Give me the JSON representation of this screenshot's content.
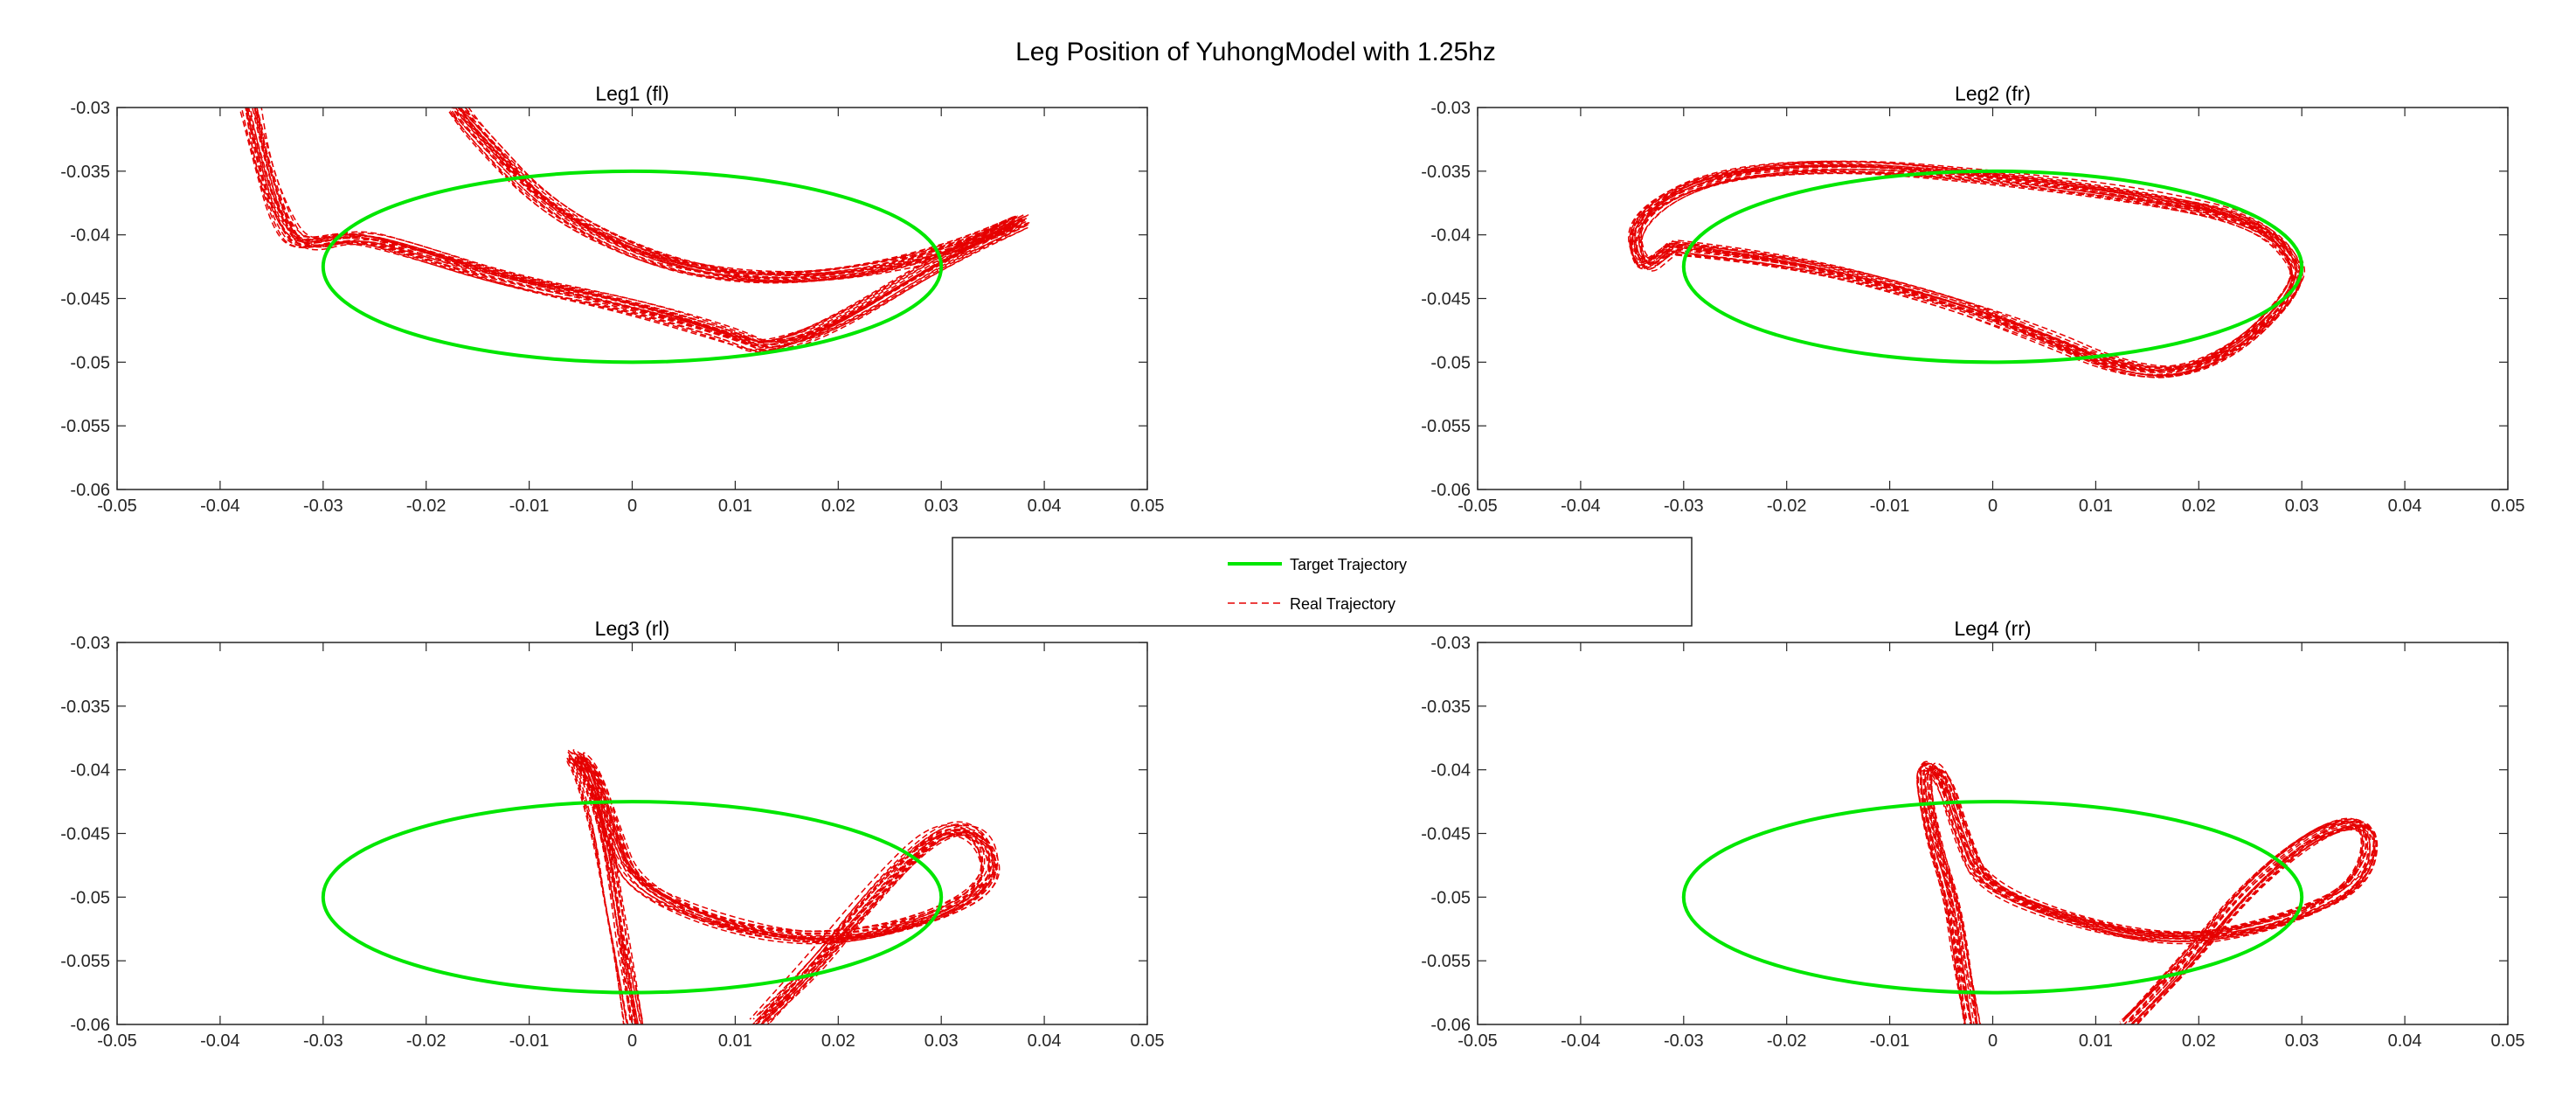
{
  "figure": {
    "title": "Leg Position of YuhongModel with 1.25hz"
  },
  "legend": {
    "entries": [
      {
        "label": "Target Trajectory",
        "color": "#00e600",
        "style": "solid"
      },
      {
        "label": "Real Trajectory",
        "color": "#e60000",
        "style": "dashed"
      }
    ]
  },
  "colors": {
    "target": "#00e600",
    "real": "#e60000",
    "axis": "#262626"
  },
  "chart_data": [
    {
      "type": "line",
      "title": "Leg1 (fl)",
      "xlim": [
        -0.05,
        0.05
      ],
      "ylim": [
        -0.06,
        -0.03
      ],
      "xticks": [
        "-0.05",
        "-0.04",
        "-0.03",
        "-0.02",
        "-0.01",
        "0",
        "0.01",
        "0.02",
        "0.03",
        "0.04",
        "0.05"
      ],
      "yticks": [
        "-0.03",
        "-0.035",
        "-0.04",
        "-0.045",
        "-0.05",
        "-0.055",
        "-0.06"
      ],
      "target": {
        "center": [
          0,
          -0.0425
        ],
        "rx": 0.03,
        "ry": 0.0075
      },
      "real_path": [
        [
          -0.037,
          -0.03
        ],
        [
          -0.036,
          -0.034
        ],
        [
          -0.034,
          -0.039
        ],
        [
          -0.032,
          -0.041
        ],
        [
          -0.027,
          -0.04
        ],
        [
          -0.022,
          -0.041
        ],
        [
          -0.012,
          -0.0435
        ],
        [
          0.0,
          -0.0455
        ],
        [
          0.01,
          -0.048
        ],
        [
          0.013,
          -0.049
        ],
        [
          0.02,
          -0.047
        ],
        [
          0.03,
          -0.042
        ],
        [
          0.04,
          -0.038
        ],
        [
          0.032,
          -0.041
        ],
        [
          0.022,
          -0.043
        ],
        [
          0.012,
          -0.0435
        ],
        [
          0.002,
          -0.042
        ],
        [
          -0.008,
          -0.038
        ],
        [
          -0.015,
          -0.032
        ],
        [
          -0.017,
          -0.03
        ]
      ],
      "real_copies": 22,
      "real_spread": 0.0009
    },
    {
      "type": "line",
      "title": "Leg2 (fr)",
      "xlim": [
        -0.05,
        0.05
      ],
      "ylim": [
        -0.06,
        -0.03
      ],
      "xticks": [
        "-0.05",
        "-0.04",
        "-0.03",
        "-0.02",
        "-0.01",
        "0",
        "0.01",
        "0.02",
        "0.03",
        "0.04",
        "0.05"
      ],
      "yticks": [
        "-0.03",
        "-0.035",
        "-0.04",
        "-0.045",
        "-0.05",
        "-0.055",
        "-0.06"
      ],
      "target": {
        "center": [
          0,
          -0.0425
        ],
        "rx": 0.03,
        "ry": 0.0075
      },
      "real_path": [
        [
          -0.031,
          -0.041
        ],
        [
          -0.02,
          -0.042
        ],
        [
          -0.005,
          -0.045
        ],
        [
          0.005,
          -0.048
        ],
        [
          0.012,
          -0.0505
        ],
        [
          0.018,
          -0.051
        ],
        [
          0.024,
          -0.049
        ],
        [
          0.029,
          -0.045
        ],
        [
          0.03,
          -0.0425
        ],
        [
          0.026,
          -0.039
        ],
        [
          0.015,
          -0.037
        ],
        [
          0.0,
          -0.0355
        ],
        [
          -0.015,
          -0.0345
        ],
        [
          -0.028,
          -0.0355
        ],
        [
          -0.035,
          -0.039
        ],
        [
          -0.034,
          -0.043
        ],
        [
          -0.031,
          -0.041
        ]
      ],
      "real_copies": 22,
      "real_spread": 0.0008
    },
    {
      "type": "line",
      "title": "Leg3 (rl)",
      "xlim": [
        -0.05,
        0.05
      ],
      "ylim": [
        -0.06,
        -0.03
      ],
      "xticks": [
        "-0.05",
        "-0.04",
        "-0.03",
        "-0.02",
        "-0.01",
        "0",
        "0.01",
        "0.02",
        "0.03",
        "0.04",
        "0.05"
      ],
      "yticks": [
        "-0.03",
        "-0.035",
        "-0.04",
        "-0.045",
        "-0.05",
        "-0.055",
        "-0.06"
      ],
      "target": {
        "center": [
          0,
          -0.05
        ],
        "rx": 0.03,
        "ry": 0.0075
      },
      "real_path": [
        [
          0.0,
          -0.06
        ],
        [
          -0.001,
          -0.055
        ],
        [
          -0.002,
          -0.05
        ],
        [
          -0.003,
          -0.045
        ],
        [
          -0.005,
          -0.04
        ],
        [
          -0.006,
          -0.0385
        ],
        [
          -0.004,
          -0.04
        ],
        [
          -0.002,
          -0.045
        ],
        [
          0.0,
          -0.049
        ],
        [
          0.008,
          -0.052
        ],
        [
          0.018,
          -0.0535
        ],
        [
          0.028,
          -0.052
        ],
        [
          0.035,
          -0.049
        ],
        [
          0.034,
          -0.045
        ],
        [
          0.03,
          -0.0445
        ],
        [
          0.024,
          -0.049
        ],
        [
          0.018,
          -0.055
        ],
        [
          0.012,
          -0.06
        ]
      ],
      "real_copies": 22,
      "real_spread": 0.0009
    },
    {
      "type": "line",
      "title": "Leg4 (rr)",
      "xlim": [
        -0.05,
        0.05
      ],
      "ylim": [
        -0.06,
        -0.03
      ],
      "xticks": [
        "-0.05",
        "-0.04",
        "-0.03",
        "-0.02",
        "-0.01",
        "0",
        "0.01",
        "0.02",
        "0.03",
        "0.04",
        "0.05"
      ],
      "yticks": [
        "-0.03",
        "-0.035",
        "-0.04",
        "-0.045",
        "-0.05",
        "-0.055",
        "-0.06"
      ],
      "target": {
        "center": [
          0,
          -0.05
        ],
        "rx": 0.03,
        "ry": 0.0075
      },
      "real_path": [
        [
          -0.002,
          -0.06
        ],
        [
          -0.003,
          -0.055
        ],
        [
          -0.004,
          -0.05
        ],
        [
          -0.006,
          -0.045
        ],
        [
          -0.007,
          -0.0395
        ],
        [
          -0.005,
          -0.04
        ],
        [
          -0.003,
          -0.045
        ],
        [
          -0.001,
          -0.049
        ],
        [
          0.008,
          -0.052
        ],
        [
          0.018,
          -0.0535
        ],
        [
          0.028,
          -0.052
        ],
        [
          0.036,
          -0.049
        ],
        [
          0.037,
          -0.044
        ],
        [
          0.032,
          -0.0445
        ],
        [
          0.025,
          -0.049
        ],
        [
          0.019,
          -0.055
        ],
        [
          0.013,
          -0.06
        ]
      ],
      "real_copies": 22,
      "real_spread": 0.0008
    }
  ]
}
